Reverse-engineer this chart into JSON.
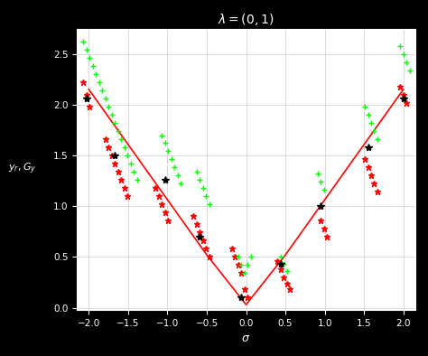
{
  "title": "$\\lambda=(0,1)$",
  "xlabel": "$\\sigma$",
  "ylabel": "$y_r, G_y$",
  "xlim": [
    -2.15,
    2.15
  ],
  "ylim": [
    -0.02,
    2.75
  ],
  "xticks": [
    -2,
    -1.5,
    -1,
    -0.5,
    0,
    0.5,
    1,
    1.5,
    2
  ],
  "yticks": [
    0,
    0.5,
    1,
    1.5,
    2,
    2.5
  ],
  "background_color": "#000000",
  "plot_bg_color": "#ffffff",
  "grid_color": "#cccccc",
  "red_line_x": [
    -2.0,
    -0.5,
    0.0,
    0.5,
    2.0
  ],
  "red_line_y": [
    2.15,
    0.52,
    0.03,
    0.52,
    2.15
  ],
  "green_x": [
    -2.07,
    -2.03,
    -1.99,
    -1.95,
    -1.91,
    -1.87,
    -1.83,
    -1.79,
    -1.75,
    -1.71,
    -1.67,
    -1.63,
    -1.59,
    -1.55,
    -1.51,
    -1.47,
    -1.43,
    -1.39,
    -1.07,
    -1.03,
    -0.99,
    -0.95,
    -0.91,
    -0.87,
    -0.83,
    -0.63,
    -0.59,
    -0.55,
    -0.51,
    -0.47,
    -0.1,
    -0.06,
    -0.02,
    0.02,
    0.06,
    0.44,
    0.48,
    0.52,
    0.91,
    0.95,
    0.99,
    1.51,
    1.55,
    1.59,
    1.63,
    1.67,
    1.96,
    2.0,
    2.04,
    2.08
  ],
  "green_y": [
    2.62,
    2.54,
    2.46,
    2.38,
    2.3,
    2.22,
    2.14,
    2.06,
    1.98,
    1.9,
    1.82,
    1.74,
    1.66,
    1.58,
    1.5,
    1.42,
    1.34,
    1.26,
    1.7,
    1.62,
    1.54,
    1.46,
    1.38,
    1.3,
    1.22,
    1.34,
    1.26,
    1.18,
    1.1,
    1.02,
    0.5,
    0.42,
    0.34,
    0.42,
    0.5,
    0.5,
    0.43,
    0.36,
    1.32,
    1.24,
    1.16,
    1.98,
    1.9,
    1.82,
    1.74,
    1.66,
    2.58,
    2.5,
    2.42,
    2.34
  ],
  "black_x": [
    -2.03,
    -1.67,
    -1.03,
    -0.59,
    -0.06,
    0.44,
    0.95,
    1.55,
    2.0
  ],
  "black_y": [
    2.06,
    1.5,
    1.26,
    0.7,
    0.1,
    0.43,
    1.0,
    1.58,
    2.06
  ],
  "red_x": [
    -2.07,
    -2.03,
    -1.99,
    -1.79,
    -1.75,
    -1.71,
    -1.67,
    -1.63,
    -1.59,
    -1.55,
    -1.51,
    -1.15,
    -1.11,
    -1.07,
    -1.03,
    -0.99,
    -0.67,
    -0.63,
    -0.59,
    -0.55,
    -0.51,
    -0.47,
    -0.18,
    -0.14,
    -0.1,
    -0.06,
    -0.02,
    0.02,
    0.4,
    0.44,
    0.48,
    0.52,
    0.56,
    0.95,
    0.99,
    1.03,
    1.51,
    1.55,
    1.59,
    1.63,
    1.67,
    1.96,
    2.0,
    2.04
  ],
  "red_y": [
    2.22,
    2.1,
    1.98,
    1.66,
    1.58,
    1.5,
    1.42,
    1.34,
    1.26,
    1.18,
    1.1,
    1.18,
    1.1,
    1.02,
    0.94,
    0.86,
    0.9,
    0.82,
    0.74,
    0.66,
    0.58,
    0.5,
    0.58,
    0.5,
    0.42,
    0.34,
    0.18,
    0.1,
    0.46,
    0.38,
    0.3,
    0.24,
    0.18,
    0.86,
    0.78,
    0.7,
    1.46,
    1.38,
    1.3,
    1.22,
    1.14,
    2.18,
    2.1,
    2.02
  ]
}
